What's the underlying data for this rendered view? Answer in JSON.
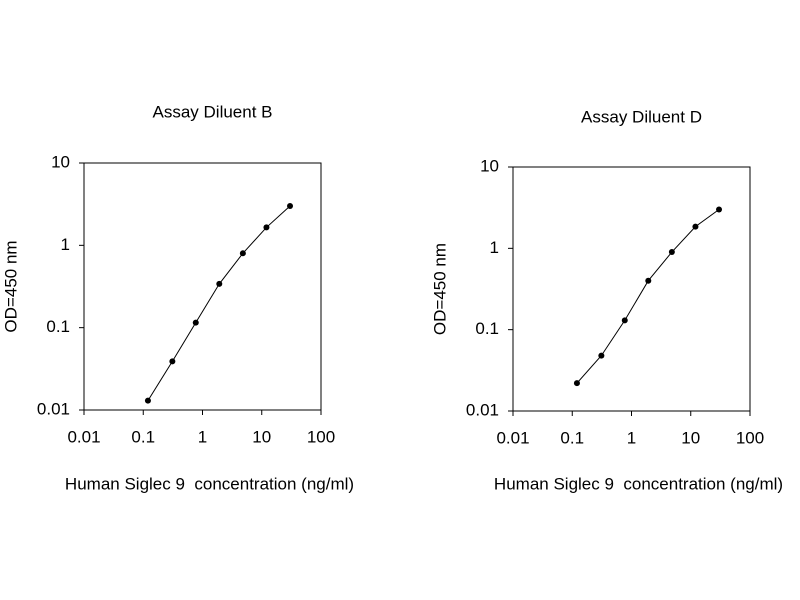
{
  "chart_data": [
    {
      "type": "line",
      "title": "Assay Diluent B",
      "xlabel": "Human Siglec 9  concentration (ng/ml)",
      "ylabel": "OD=450 nm",
      "log_x": true,
      "log_y": true,
      "x": [
        0.12,
        0.31,
        0.77,
        1.92,
        4.8,
        12,
        30
      ],
      "series": [
        {
          "color": "#000000",
          "values": [
            0.013,
            0.039,
            0.115,
            0.34,
            0.8,
            1.65,
            3.0
          ]
        }
      ],
      "xlim": [
        0.01,
        100
      ],
      "xticks": [
        0.01,
        0.1,
        1,
        10,
        100
      ],
      "ylim": [
        0.01,
        10
      ],
      "yticks": [
        0.01,
        0.1,
        1,
        10
      ]
    },
    {
      "type": "line",
      "title": "Assay Diluent D",
      "xlabel": "Human Siglec 9  concentration (ng/ml)",
      "ylabel": "OD=450 nm",
      "log_x": true,
      "log_y": true,
      "x": [
        0.12,
        0.31,
        0.77,
        1.92,
        4.8,
        12,
        30
      ],
      "series": [
        {
          "color": "#000000",
          "values": [
            0.022,
            0.048,
            0.13,
            0.4,
            0.9,
            1.85,
            3.0
          ]
        }
      ],
      "xlim": [
        0.01,
        100
      ],
      "xticks": [
        0.01,
        0.1,
        1,
        10,
        100
      ],
      "ylim": [
        0.01,
        10
      ],
      "yticks": [
        0.01,
        0.1,
        1,
        10
      ]
    }
  ]
}
